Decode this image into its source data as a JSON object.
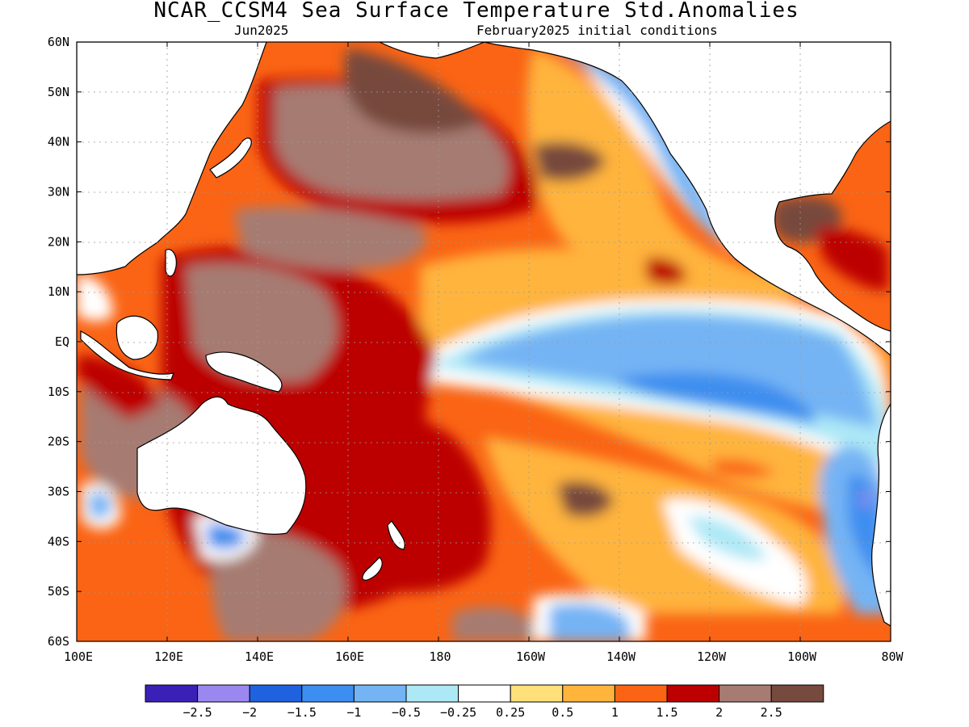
{
  "title": "NCAR_CCSM4 Sea Surface Temperature Std.Anomalies",
  "subtitle_left": "Jun2025",
  "subtitle_right": "February2025 initial conditions",
  "axes": {
    "lat_labels": [
      "60N",
      "50N",
      "40N",
      "30N",
      "20N",
      "10N",
      "EQ",
      "10S",
      "20S",
      "30S",
      "40S",
      "50S",
      "60S"
    ],
    "lon_labels": [
      "100E",
      "120E",
      "140E",
      "160E",
      "180",
      "160W",
      "140W",
      "120W",
      "100W",
      "80W"
    ]
  },
  "legend": {
    "colors": [
      "#3b20b8",
      "#9a88f0",
      "#1f62e0",
      "#3c8ef0",
      "#74b4f4",
      "#ade8f6",
      "#ffffff",
      "#ffe07a",
      "#ffb43c",
      "#fa6414",
      "#bc0000",
      "#a67c72",
      "#774a3e"
    ],
    "labels": [
      "−2.5",
      "−2",
      "−1.5",
      "−1",
      "−0.5",
      "−0.25",
      "0.25",
      "0.5",
      "1",
      "1.5",
      "2",
      "2.5"
    ]
  },
  "colors": {
    "land": "#ffffff",
    "coast": "#000000",
    "grid": "#bfbfbf"
  }
}
